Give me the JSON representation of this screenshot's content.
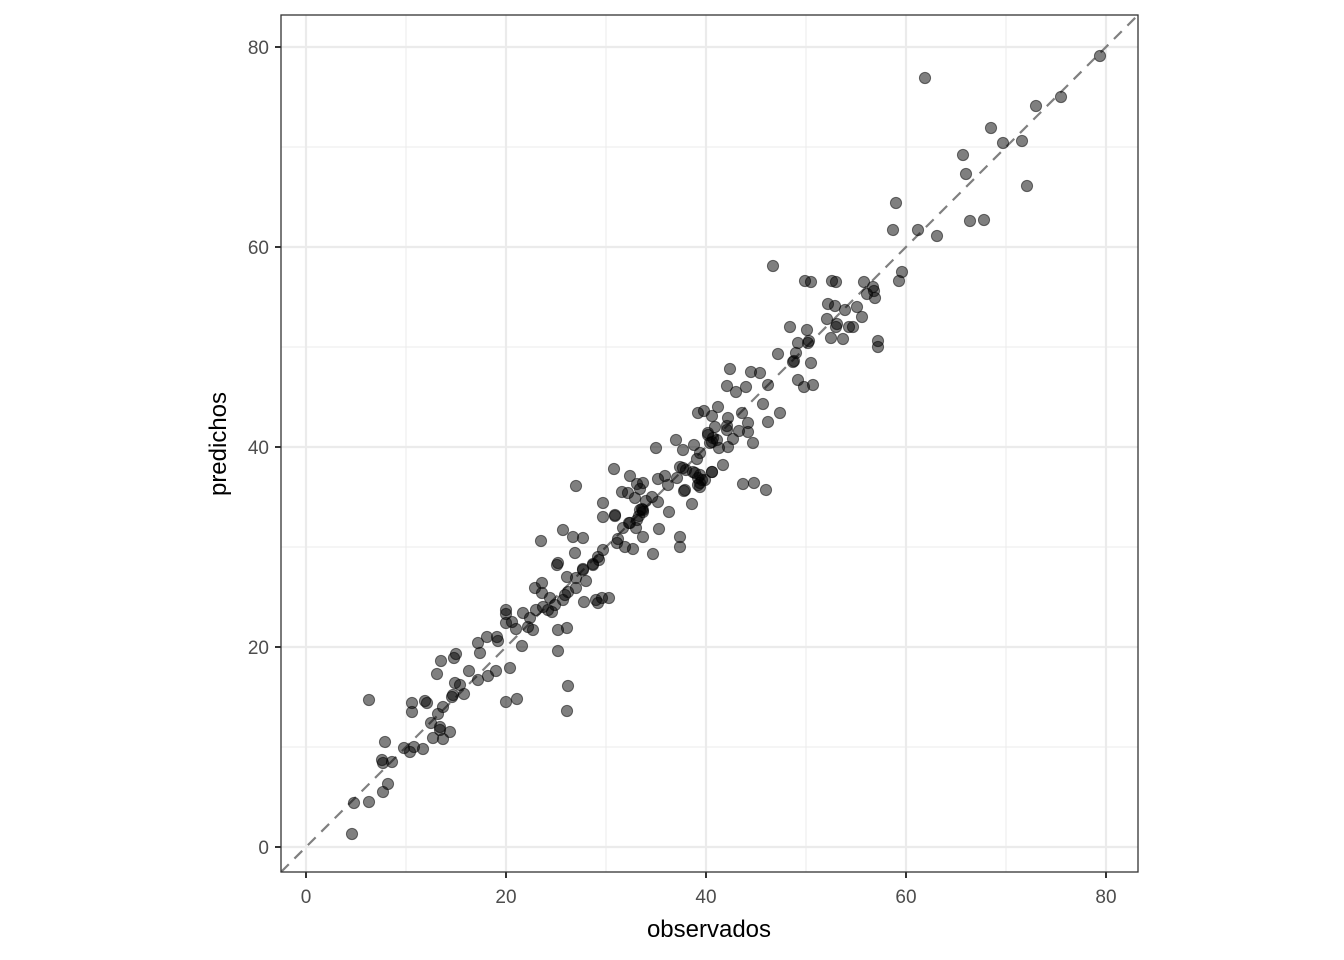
{
  "chart_data": {
    "type": "scatter",
    "title": "",
    "xlabel": "observados",
    "ylabel": "predichos",
    "xlim": [
      -2.5,
      83
    ],
    "ylim": [
      -2.5,
      83
    ],
    "x_ticks": [
      0,
      20,
      40,
      60,
      80
    ],
    "y_ticks": [
      0,
      20,
      40,
      60,
      80
    ],
    "x_tick_labels": [
      "0",
      "20",
      "40",
      "60",
      "80"
    ],
    "y_tick_labels": [
      "0",
      "20",
      "40",
      "60",
      "80"
    ],
    "grid": true,
    "legend": "none",
    "reference_line": {
      "type": "identity",
      "slope": 1,
      "intercept": 0,
      "style": "dashed",
      "color": "#808080"
    },
    "point_color": "#000000",
    "point_alpha": 0.5,
    "points": [
      [
        4.6,
        1.3
      ],
      [
        4.8,
        4.4
      ],
      [
        6.3,
        4.5
      ],
      [
        7.7,
        5.5
      ],
      [
        8.2,
        6.3
      ],
      [
        7.6,
        8.7
      ],
      [
        7.7,
        8.4
      ],
      [
        8.6,
        8.5
      ],
      [
        7.9,
        10.5
      ],
      [
        6.3,
        14.7
      ],
      [
        9.8,
        9.9
      ],
      [
        10.4,
        9.5
      ],
      [
        10.8,
        10.0
      ],
      [
        11.7,
        9.8
      ],
      [
        10.6,
        14.4
      ],
      [
        10.6,
        13.5
      ],
      [
        11.9,
        14.6
      ],
      [
        12.1,
        14.4
      ],
      [
        12.5,
        12.4
      ],
      [
        13.2,
        13.3
      ],
      [
        13.7,
        14.0
      ],
      [
        13.4,
        12.0
      ],
      [
        13.4,
        11.7
      ],
      [
        14.4,
        11.5
      ],
      [
        12.7,
        10.9
      ],
      [
        13.7,
        10.8
      ],
      [
        14.7,
        15.2
      ],
      [
        14.6,
        15.0
      ],
      [
        15.8,
        15.3
      ],
      [
        14.9,
        16.4
      ],
      [
        15.4,
        16.2
      ],
      [
        13.1,
        17.3
      ],
      [
        13.5,
        18.6
      ],
      [
        14.8,
        18.9
      ],
      [
        15.0,
        19.3
      ],
      [
        16.3,
        17.6
      ],
      [
        17.2,
        16.7
      ],
      [
        18.2,
        17.1
      ],
      [
        19.0,
        17.6
      ],
      [
        20.4,
        17.9
      ],
      [
        20.0,
        14.5
      ],
      [
        21.1,
        14.8
      ],
      [
        21.6,
        20.1
      ],
      [
        18.1,
        21.0
      ],
      [
        19.1,
        21.0
      ],
      [
        19.2,
        20.6
      ],
      [
        17.2,
        20.4
      ],
      [
        17.4,
        19.4
      ],
      [
        20.0,
        23.7
      ],
      [
        20.0,
        23.3
      ],
      [
        20.0,
        22.4
      ],
      [
        20.6,
        22.5
      ],
      [
        21.0,
        21.8
      ],
      [
        21.7,
        23.4
      ],
      [
        22.4,
        22.9
      ],
      [
        22.2,
        22.0
      ],
      [
        22.7,
        21.7
      ],
      [
        23.0,
        23.7
      ],
      [
        22.9,
        25.9
      ],
      [
        23.6,
        26.4
      ],
      [
        23.6,
        25.4
      ],
      [
        24.4,
        24.9
      ],
      [
        23.7,
        24.0
      ],
      [
        24.2,
        23.7
      ],
      [
        24.6,
        23.5
      ],
      [
        24.9,
        24.2
      ],
      [
        25.2,
        21.7
      ],
      [
        26.1,
        21.9
      ],
      [
        25.2,
        19.6
      ],
      [
        26.2,
        16.1
      ],
      [
        26.1,
        13.6
      ],
      [
        25.1,
        28.2
      ],
      [
        25.2,
        28.4
      ],
      [
        25.9,
        25.2
      ],
      [
        26.2,
        25.5
      ],
      [
        25.7,
        24.7
      ],
      [
        27.0,
        25.9
      ],
      [
        26.1,
        27.0
      ],
      [
        27.0,
        26.9
      ],
      [
        28.0,
        26.6
      ],
      [
        27.7,
        27.8
      ],
      [
        28.7,
        28.3
      ],
      [
        29.3,
        28.7
      ],
      [
        27.8,
        24.5
      ],
      [
        29.0,
        24.7
      ],
      [
        29.2,
        24.4
      ],
      [
        29.6,
        24.9
      ],
      [
        30.3,
        24.9
      ],
      [
        23.5,
        30.6
      ],
      [
        25.7,
        31.7
      ],
      [
        26.7,
        31.0
      ],
      [
        27.7,
        30.9
      ],
      [
        26.9,
        29.4
      ],
      [
        27.0,
        36.1
      ],
      [
        27.7,
        27.7
      ],
      [
        28.7,
        28.2
      ],
      [
        29.2,
        29.0
      ],
      [
        29.7,
        29.7
      ],
      [
        31.2,
        30.8
      ],
      [
        31.1,
        30.4
      ],
      [
        31.9,
        30.0
      ],
      [
        32.7,
        29.8
      ],
      [
        31.7,
        31.9
      ],
      [
        32.3,
        32.4
      ],
      [
        33.0,
        31.9
      ],
      [
        33.7,
        31.0
      ],
      [
        34.7,
        29.3
      ],
      [
        35.3,
        31.8
      ],
      [
        37.4,
        31.0
      ],
      [
        37.4,
        30.0
      ],
      [
        36.3,
        33.5
      ],
      [
        38.6,
        34.3
      ],
      [
        35.2,
        34.5
      ],
      [
        33.4,
        33.7
      ],
      [
        33.7,
        33.7
      ],
      [
        33.3,
        33.1
      ],
      [
        33.6,
        33.8
      ],
      [
        33.7,
        33.5
      ],
      [
        33.1,
        32.7
      ],
      [
        30.9,
        33.1
      ],
      [
        29.7,
        33.0
      ],
      [
        29.7,
        34.4
      ],
      [
        30.9,
        33.2
      ],
      [
        32.4,
        32.4
      ],
      [
        30.8,
        37.8
      ],
      [
        31.6,
        35.5
      ],
      [
        32.2,
        35.4
      ],
      [
        32.9,
        34.9
      ],
      [
        34.0,
        34.6
      ],
      [
        34.6,
        35.0
      ],
      [
        32.4,
        37.1
      ],
      [
        33.1,
        36.3
      ],
      [
        33.7,
        36.4
      ],
      [
        33.4,
        35.8
      ],
      [
        35.2,
        36.8
      ],
      [
        35.9,
        37.1
      ],
      [
        36.2,
        36.2
      ],
      [
        37.1,
        36.9
      ],
      [
        37.8,
        35.6
      ],
      [
        35.0,
        39.9
      ],
      [
        37.4,
        38.0
      ],
      [
        38.0,
        37.7
      ],
      [
        38.9,
        37.4
      ],
      [
        39.2,
        36.9
      ],
      [
        39.4,
        36.4
      ],
      [
        39.9,
        36.7
      ],
      [
        40.6,
        37.5
      ],
      [
        39.4,
        36.0
      ],
      [
        37.0,
        40.7
      ],
      [
        37.7,
        39.7
      ],
      [
        38.8,
        40.2
      ],
      [
        39.4,
        39.4
      ],
      [
        39.1,
        38.8
      ],
      [
        40.2,
        41.2
      ],
      [
        40.4,
        40.4
      ],
      [
        41.1,
        40.7
      ],
      [
        41.7,
        38.2
      ],
      [
        40.6,
        37.5
      ],
      [
        39.4,
        37.2
      ],
      [
        38.7,
        37.5
      ],
      [
        37.7,
        37.9
      ],
      [
        39.6,
        36.7
      ],
      [
        39.2,
        36.2
      ],
      [
        37.9,
        35.7
      ],
      [
        43.7,
        36.3
      ],
      [
        44.8,
        36.4
      ],
      [
        46.0,
        35.7
      ],
      [
        39.2,
        43.4
      ],
      [
        39.8,
        43.6
      ],
      [
        40.6,
        43.1
      ],
      [
        41.2,
        44.0
      ],
      [
        42.2,
        42.9
      ],
      [
        43.6,
        43.4
      ],
      [
        44.2,
        42.4
      ],
      [
        42.1,
        42.1
      ],
      [
        42.1,
        41.7
      ],
      [
        40.9,
        42.0
      ],
      [
        40.2,
        41.4
      ],
      [
        40.7,
        40.9
      ],
      [
        40.6,
        40.5
      ],
      [
        41.3,
        39.9
      ],
      [
        42.2,
        40.0
      ],
      [
        42.7,
        40.8
      ],
      [
        43.3,
        41.6
      ],
      [
        44.2,
        41.5
      ],
      [
        44.7,
        40.4
      ],
      [
        42.4,
        47.8
      ],
      [
        44.5,
        47.5
      ],
      [
        45.4,
        47.4
      ],
      [
        42.1,
        46.1
      ],
      [
        43.0,
        45.5
      ],
      [
        44.0,
        46.0
      ],
      [
        46.2,
        46.2
      ],
      [
        45.7,
        44.3
      ],
      [
        47.4,
        43.4
      ],
      [
        46.2,
        42.5
      ],
      [
        49.2,
        46.7
      ],
      [
        49.8,
        46.0
      ],
      [
        50.7,
        46.2
      ],
      [
        48.7,
        48.5
      ],
      [
        47.2,
        49.3
      ],
      [
        49.0,
        49.4
      ],
      [
        48.8,
        48.6
      ],
      [
        50.5,
        48.4
      ],
      [
        49.2,
        50.4
      ],
      [
        50.2,
        50.4
      ],
      [
        50.3,
        50.6
      ],
      [
        48.4,
        52.0
      ],
      [
        50.1,
        51.7
      ],
      [
        46.7,
        58.1
      ],
      [
        49.9,
        56.6
      ],
      [
        50.5,
        56.5
      ],
      [
        52.6,
        56.6
      ],
      [
        53.0,
        56.5
      ],
      [
        55.8,
        56.5
      ],
      [
        56.7,
        56.0
      ],
      [
        56.8,
        55.6
      ],
      [
        56.1,
        55.3
      ],
      [
        56.9,
        54.9
      ],
      [
        59.6,
        57.5
      ],
      [
        59.3,
        56.6
      ],
      [
        52.2,
        54.3
      ],
      [
        52.9,
        54.1
      ],
      [
        53.9,
        53.7
      ],
      [
        55.1,
        54.0
      ],
      [
        55.6,
        53.0
      ],
      [
        52.1,
        52.8
      ],
      [
        53.1,
        52.3
      ],
      [
        53.0,
        52.0
      ],
      [
        54.3,
        52.0
      ],
      [
        54.7,
        52.0
      ],
      [
        52.5,
        50.9
      ],
      [
        53.7,
        50.8
      ],
      [
        57.2,
        50.6
      ],
      [
        57.2,
        50.0
      ],
      [
        59.0,
        64.4
      ],
      [
        58.7,
        61.7
      ],
      [
        61.2,
        61.7
      ],
      [
        63.1,
        61.1
      ],
      [
        66.4,
        62.6
      ],
      [
        67.8,
        62.7
      ],
      [
        65.7,
        69.2
      ],
      [
        66.0,
        67.3
      ],
      [
        61.9,
        76.9
      ],
      [
        68.5,
        71.9
      ],
      [
        69.7,
        70.4
      ],
      [
        71.6,
        70.6
      ],
      [
        72.1,
        66.1
      ],
      [
        73.0,
        74.1
      ],
      [
        75.5,
        75.0
      ],
      [
        79.4,
        79.1
      ]
    ]
  },
  "labels": {
    "xlabel": "observados",
    "ylabel": "predichos"
  }
}
